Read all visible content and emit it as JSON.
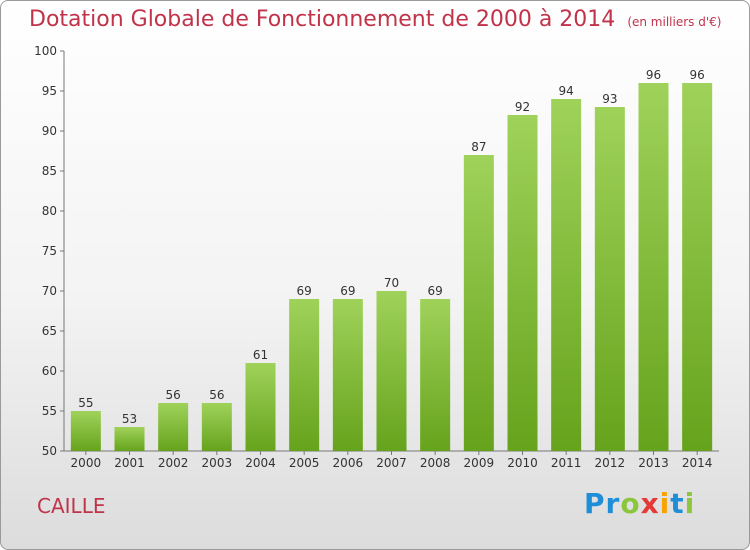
{
  "title": "Dotation Globale de Fonctionnement de 2000 à 2014",
  "unit": "(en milliers d'€)",
  "commune": "CAILLE",
  "logo": {
    "letters": [
      "P",
      "r",
      "o",
      "x",
      "i",
      "t",
      "i"
    ],
    "colors": [
      "#1f8ed8",
      "#1f8ed8",
      "#8cc63f",
      "#e53935",
      "#f7a400",
      "#1f8ed8",
      "#8cc63f"
    ]
  },
  "chart_data": {
    "type": "bar",
    "categories": [
      "2000",
      "2001",
      "2002",
      "2003",
      "2004",
      "2005",
      "2006",
      "2007",
      "2008",
      "2009",
      "2010",
      "2011",
      "2012",
      "2013",
      "2014"
    ],
    "values": [
      55,
      53,
      56,
      56,
      61,
      69,
      69,
      70,
      69,
      87,
      92,
      94,
      93,
      96,
      96
    ],
    "ylim": [
      50,
      100
    ],
    "yticks": [
      50,
      55,
      60,
      65,
      70,
      75,
      80,
      85,
      90,
      95,
      100
    ],
    "grid": false,
    "bar_color": "#7fc242"
  }
}
